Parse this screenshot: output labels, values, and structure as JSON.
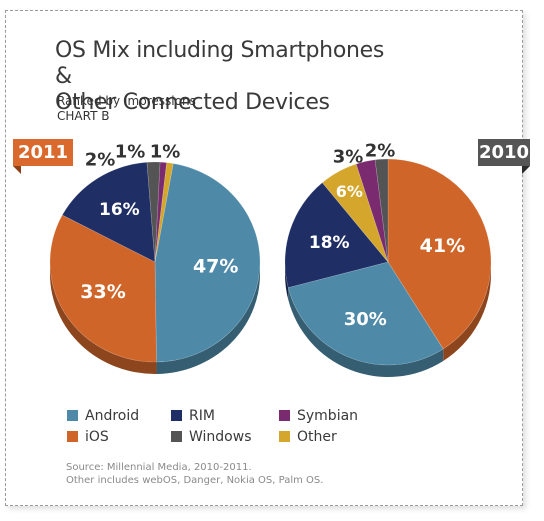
{
  "title": {
    "line1": "OS Mix including Smartphones &",
    "line2": "Other Connected Devices"
  },
  "subtitle": {
    "line1": "Ranked by Impressions",
    "line2": "CHART B"
  },
  "colors": {
    "Android": "#4e8aa8",
    "iOS": "#d0652a",
    "RIM": "#1f2f66",
    "Windows": "#545454",
    "Symbian": "#7a2a6e",
    "Other": "#d4a62b"
  },
  "legend": [
    {
      "label": "Android",
      "color": "#4e8aa8"
    },
    {
      "label": "iOS",
      "color": "#d0652a"
    },
    {
      "label": "RIM",
      "color": "#1f2f66"
    },
    {
      "label": "Windows",
      "color": "#545454"
    },
    {
      "label": "Symbian",
      "color": "#7a2a6e"
    },
    {
      "label": "Other",
      "color": "#d4a62b"
    }
  ],
  "source": {
    "line1": "Source: Millennial Media, 2010-2011.",
    "line2": "Other includes webOS, Danger, Nokia OS, Palm OS."
  },
  "chart_data": [
    {
      "type": "pie",
      "title": "2011",
      "categories": [
        "Android",
        "iOS",
        "RIM",
        "Windows",
        "Symbian",
        "Other"
      ],
      "values": [
        47,
        33,
        16,
        2,
        1,
        1
      ],
      "data_labels": [
        "47%",
        "33%",
        "16%",
        "2%",
        "1%",
        "1%"
      ]
    },
    {
      "type": "pie",
      "title": "2010",
      "categories": [
        "iOS",
        "Android",
        "RIM",
        "Other",
        "Symbian",
        "Windows"
      ],
      "values": [
        41,
        30,
        18,
        6,
        3,
        2
      ],
      "data_labels": [
        "41%",
        "30%",
        "18%",
        "6%",
        "3%",
        "2%"
      ]
    }
  ]
}
